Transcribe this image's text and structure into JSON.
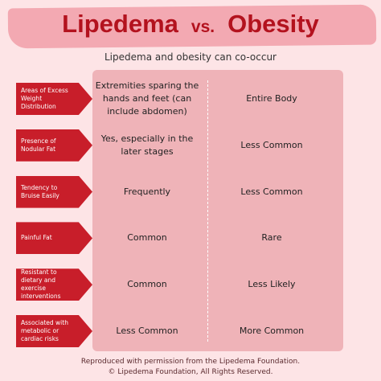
{
  "header": {
    "title_left": "Lipedema",
    "title_vs": "vs.",
    "title_right": "Obesity",
    "subtitle": "Lipedema and obesity can co-occur"
  },
  "table": {
    "rows": [
      {
        "label": "Areas of Excess Weight Distribution",
        "lipedema": "Extremities sparing the hands and feet (can include abdomen)",
        "obesity": "Entire Body"
      },
      {
        "label": "Presence of Nodular Fat",
        "lipedema": "Yes, especially in the later stages",
        "obesity": "Less Common"
      },
      {
        "label": "Tendency to Bruise Easily",
        "lipedema": "Frequently",
        "obesity": "Less Common"
      },
      {
        "label": "Painful Fat",
        "lipedema": "Common",
        "obesity": "Rare"
      },
      {
        "label": "Resistant to dietary and exercise interventions",
        "lipedema": "Common",
        "obesity": "Less Likely"
      },
      {
        "label": "Associated with metabolic or cardiac risks",
        "lipedema": "Less Common",
        "obesity": "More Common"
      }
    ]
  },
  "footer": {
    "line1": "Reproduced with permission from the Lipedema Foundation.",
    "line2": "© Lipedema Foundation, All Rights Reserved."
  }
}
